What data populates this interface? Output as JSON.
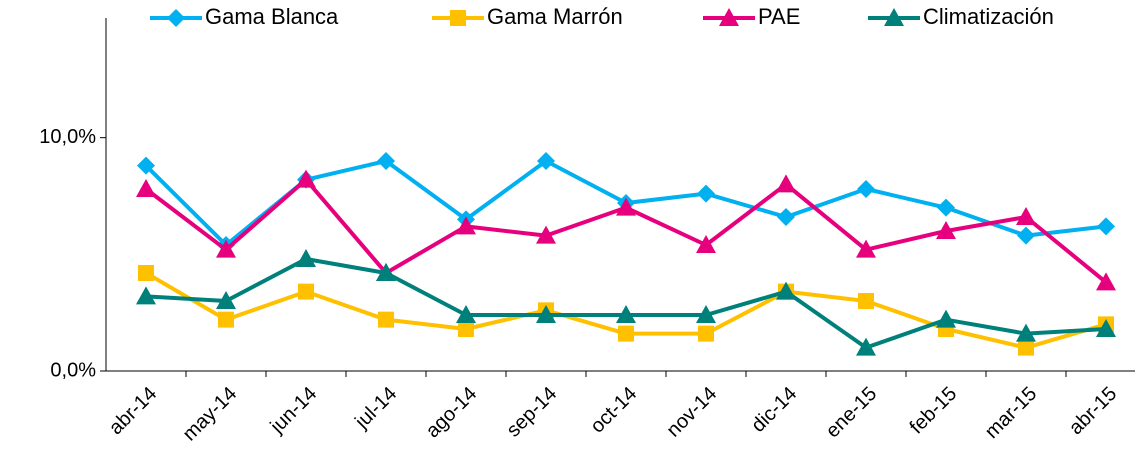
{
  "chart_data": {
    "type": "line",
    "categories": [
      "abr-14",
      "may-14",
      "jun-14",
      "jul-14",
      "ago-14",
      "sep-14",
      "oct-14",
      "nov-14",
      "dic-14",
      "ene-15",
      "feb-15",
      "mar-15",
      "abr-15"
    ],
    "series": [
      {
        "name": "Gama Blanca",
        "color": "#00b0f0",
        "marker": "diamond",
        "values": [
          8.8,
          5.4,
          8.2,
          9.0,
          6.5,
          9.0,
          7.2,
          7.6,
          6.6,
          7.8,
          7.0,
          5.8,
          6.2
        ]
      },
      {
        "name": "Gama Marrón",
        "color": "#ffc000",
        "marker": "square",
        "values": [
          4.2,
          2.2,
          3.4,
          2.2,
          1.8,
          2.6,
          1.6,
          1.6,
          3.4,
          3.0,
          1.8,
          1.0,
          2.0
        ]
      },
      {
        "name": "PAE",
        "color": "#e6007e",
        "marker": "triangle",
        "values": [
          7.8,
          5.2,
          8.2,
          4.2,
          6.2,
          5.8,
          7.0,
          5.4,
          8.0,
          5.2,
          6.0,
          6.6,
          3.8
        ]
      },
      {
        "name": "Climatización",
        "color": "#00807a",
        "marker": "triangle",
        "values": [
          3.2,
          3.0,
          4.8,
          4.2,
          2.4,
          2.4,
          2.4,
          2.4,
          3.4,
          1.0,
          2.2,
          1.6,
          1.8
        ]
      }
    ],
    "ylim": [
      0,
      15
    ],
    "yticks": [
      {
        "value": 0,
        "label": "0,0%"
      },
      {
        "value": 10,
        "label": "10,0%"
      }
    ],
    "grid": false,
    "legend": "top"
  }
}
